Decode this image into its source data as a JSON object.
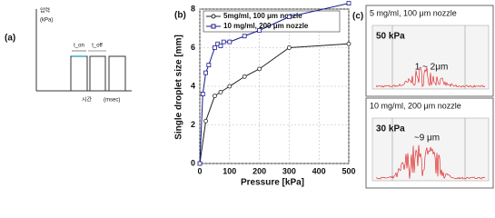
{
  "panel_a": {
    "label": "(a)",
    "y_label": "압력",
    "y_unit": "(kPa)",
    "x_label": "시간",
    "x_unit": "(msec)",
    "t_on": "t_on",
    "t_off": "t_off"
  },
  "chart_data": {
    "type": "line",
    "panel_label": "(b)",
    "x_label": "Pressure [kPa]",
    "y_label": "Single droplet size [mm]",
    "xlim": [
      0,
      500
    ],
    "xticks": [
      0,
      100,
      200,
      300,
      400,
      500
    ],
    "ylim": [
      0,
      8
    ],
    "yticks": [
      0,
      2,
      4,
      6,
      8
    ],
    "series": [
      {
        "name": "5mg/ml, 100 μm nozzle",
        "color": "#222222",
        "marker": "circle",
        "x": [
          0,
          20,
          50,
          70,
          100,
          150,
          200,
          300,
          500
        ],
        "values": [
          0,
          2.2,
          3.5,
          3.7,
          4.0,
          4.5,
          4.9,
          6.0,
          6.2
        ]
      },
      {
        "name": "10 mg/ml, 200 μm nozzle",
        "color": "#1a1a8c",
        "marker": "square",
        "x": [
          0,
          10,
          20,
          30,
          50,
          60,
          70,
          80,
          100,
          150,
          200,
          300,
          500
        ],
        "values": [
          0,
          3.6,
          4.7,
          5.1,
          6.0,
          6.2,
          6.1,
          6.3,
          6.3,
          6.6,
          6.9,
          7.6,
          8.3
        ]
      }
    ]
  },
  "panel_c": {
    "label": "(c)",
    "panels": [
      {
        "title": "5 mg/ml, 100 μm nozzle",
        "pressure": "50 kPa",
        "size": "1 ~ 2μm"
      },
      {
        "title": "10 mg/ml, 200 μm nozzle",
        "pressure": "30 kPa",
        "size": "~9 μm"
      }
    ]
  }
}
